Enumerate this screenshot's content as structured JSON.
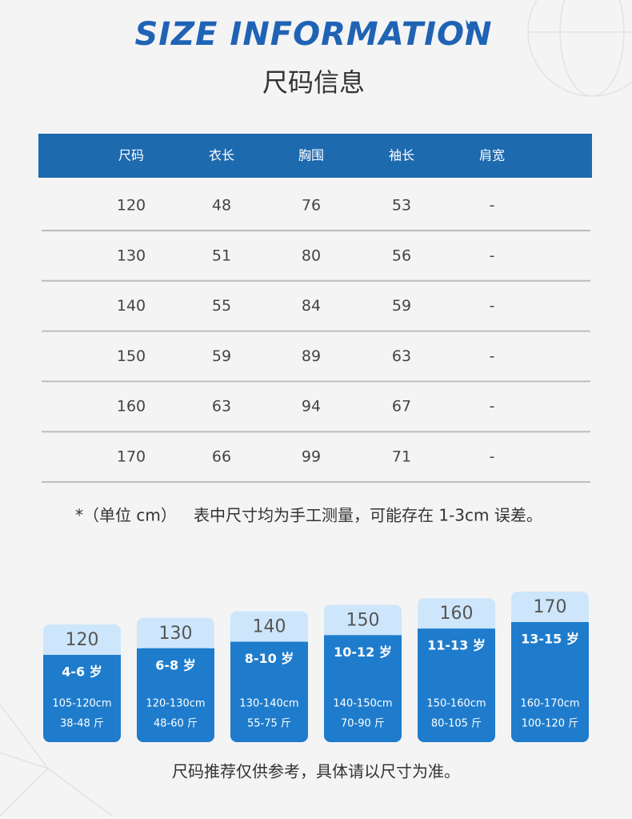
{
  "header": {
    "title": "SIZE INFORMATION",
    "subtitle": "尺码信息"
  },
  "table": {
    "columns": [
      "尺码",
      "衣长",
      "胸围",
      "袖长",
      "肩宽"
    ],
    "rows": [
      [
        120,
        48,
        76,
        53,
        "-"
      ],
      [
        130,
        51,
        80,
        56,
        "-"
      ],
      [
        140,
        55,
        84,
        59,
        "-"
      ],
      [
        150,
        59,
        89,
        63,
        "-"
      ],
      [
        160,
        63,
        94,
        67,
        "-"
      ],
      [
        170,
        66,
        99,
        71,
        "-"
      ]
    ]
  },
  "note": {
    "unit": "*（单位 cm）",
    "text": "表中尺寸均为手工测量，可能存在 1-3cm 误差。"
  },
  "cards": [
    {
      "size": "120",
      "age": "4-6 岁",
      "height": "105-120cm",
      "weight": "38-48 斤"
    },
    {
      "size": "130",
      "age": "6-8 岁",
      "height": "120-130cm",
      "weight": "48-60 斤"
    },
    {
      "size": "140",
      "age": "8-10 岁",
      "height": "130-140cm",
      "weight": "55-75 斤"
    },
    {
      "size": "150",
      "age": "10-12 岁",
      "height": "140-150cm",
      "weight": "70-90 斤"
    },
    {
      "size": "160",
      "age": "11-13 岁",
      "height": "150-160cm",
      "weight": "80-105 斤"
    },
    {
      "size": "170",
      "age": "13-15 岁",
      "height": "160-170cm",
      "weight": "100-120 斤"
    }
  ],
  "footer": "尺码推荐仅供参考，具体请以尺寸为准。"
}
